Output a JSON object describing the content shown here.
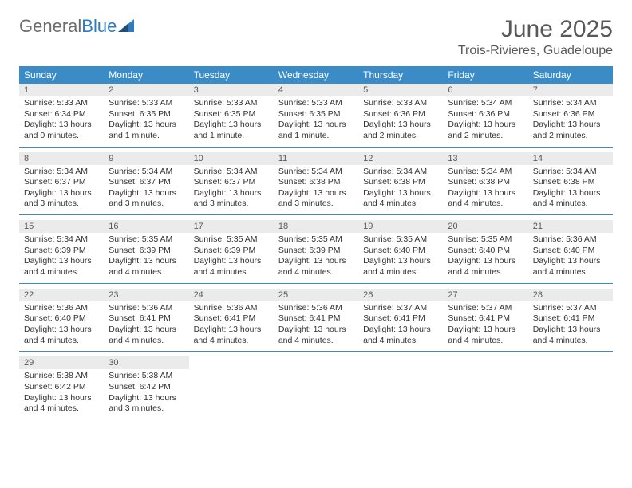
{
  "brand": {
    "word1": "General",
    "word2": "Blue"
  },
  "title": "June 2025",
  "location": "Trois-Rivieres, Guadeloupe",
  "colors": {
    "header_bg": "#3b8bc7",
    "header_text": "#ffffff",
    "daynum_bg": "#ebebeb",
    "text": "#333333",
    "title_text": "#585858",
    "logo_gray": "#6c6c6c",
    "logo_blue": "#2f7bbf",
    "divider": "#3b8bc7",
    "background": "#ffffff"
  },
  "day_names": [
    "Sunday",
    "Monday",
    "Tuesday",
    "Wednesday",
    "Thursday",
    "Friday",
    "Saturday"
  ],
  "weeks": [
    [
      {
        "n": "1",
        "sunrise": "Sunrise: 5:33 AM",
        "sunset": "Sunset: 6:34 PM",
        "d1": "Daylight: 13 hours",
        "d2": "and 0 minutes."
      },
      {
        "n": "2",
        "sunrise": "Sunrise: 5:33 AM",
        "sunset": "Sunset: 6:35 PM",
        "d1": "Daylight: 13 hours",
        "d2": "and 1 minute."
      },
      {
        "n": "3",
        "sunrise": "Sunrise: 5:33 AM",
        "sunset": "Sunset: 6:35 PM",
        "d1": "Daylight: 13 hours",
        "d2": "and 1 minute."
      },
      {
        "n": "4",
        "sunrise": "Sunrise: 5:33 AM",
        "sunset": "Sunset: 6:35 PM",
        "d1": "Daylight: 13 hours",
        "d2": "and 1 minute."
      },
      {
        "n": "5",
        "sunrise": "Sunrise: 5:33 AM",
        "sunset": "Sunset: 6:36 PM",
        "d1": "Daylight: 13 hours",
        "d2": "and 2 minutes."
      },
      {
        "n": "6",
        "sunrise": "Sunrise: 5:34 AM",
        "sunset": "Sunset: 6:36 PM",
        "d1": "Daylight: 13 hours",
        "d2": "and 2 minutes."
      },
      {
        "n": "7",
        "sunrise": "Sunrise: 5:34 AM",
        "sunset": "Sunset: 6:36 PM",
        "d1": "Daylight: 13 hours",
        "d2": "and 2 minutes."
      }
    ],
    [
      {
        "n": "8",
        "sunrise": "Sunrise: 5:34 AM",
        "sunset": "Sunset: 6:37 PM",
        "d1": "Daylight: 13 hours",
        "d2": "and 3 minutes."
      },
      {
        "n": "9",
        "sunrise": "Sunrise: 5:34 AM",
        "sunset": "Sunset: 6:37 PM",
        "d1": "Daylight: 13 hours",
        "d2": "and 3 minutes."
      },
      {
        "n": "10",
        "sunrise": "Sunrise: 5:34 AM",
        "sunset": "Sunset: 6:37 PM",
        "d1": "Daylight: 13 hours",
        "d2": "and 3 minutes."
      },
      {
        "n": "11",
        "sunrise": "Sunrise: 5:34 AM",
        "sunset": "Sunset: 6:38 PM",
        "d1": "Daylight: 13 hours",
        "d2": "and 3 minutes."
      },
      {
        "n": "12",
        "sunrise": "Sunrise: 5:34 AM",
        "sunset": "Sunset: 6:38 PM",
        "d1": "Daylight: 13 hours",
        "d2": "and 4 minutes."
      },
      {
        "n": "13",
        "sunrise": "Sunrise: 5:34 AM",
        "sunset": "Sunset: 6:38 PM",
        "d1": "Daylight: 13 hours",
        "d2": "and 4 minutes."
      },
      {
        "n": "14",
        "sunrise": "Sunrise: 5:34 AM",
        "sunset": "Sunset: 6:38 PM",
        "d1": "Daylight: 13 hours",
        "d2": "and 4 minutes."
      }
    ],
    [
      {
        "n": "15",
        "sunrise": "Sunrise: 5:34 AM",
        "sunset": "Sunset: 6:39 PM",
        "d1": "Daylight: 13 hours",
        "d2": "and 4 minutes."
      },
      {
        "n": "16",
        "sunrise": "Sunrise: 5:35 AM",
        "sunset": "Sunset: 6:39 PM",
        "d1": "Daylight: 13 hours",
        "d2": "and 4 minutes."
      },
      {
        "n": "17",
        "sunrise": "Sunrise: 5:35 AM",
        "sunset": "Sunset: 6:39 PM",
        "d1": "Daylight: 13 hours",
        "d2": "and 4 minutes."
      },
      {
        "n": "18",
        "sunrise": "Sunrise: 5:35 AM",
        "sunset": "Sunset: 6:39 PM",
        "d1": "Daylight: 13 hours",
        "d2": "and 4 minutes."
      },
      {
        "n": "19",
        "sunrise": "Sunrise: 5:35 AM",
        "sunset": "Sunset: 6:40 PM",
        "d1": "Daylight: 13 hours",
        "d2": "and 4 minutes."
      },
      {
        "n": "20",
        "sunrise": "Sunrise: 5:35 AM",
        "sunset": "Sunset: 6:40 PM",
        "d1": "Daylight: 13 hours",
        "d2": "and 4 minutes."
      },
      {
        "n": "21",
        "sunrise": "Sunrise: 5:36 AM",
        "sunset": "Sunset: 6:40 PM",
        "d1": "Daylight: 13 hours",
        "d2": "and 4 minutes."
      }
    ],
    [
      {
        "n": "22",
        "sunrise": "Sunrise: 5:36 AM",
        "sunset": "Sunset: 6:40 PM",
        "d1": "Daylight: 13 hours",
        "d2": "and 4 minutes."
      },
      {
        "n": "23",
        "sunrise": "Sunrise: 5:36 AM",
        "sunset": "Sunset: 6:41 PM",
        "d1": "Daylight: 13 hours",
        "d2": "and 4 minutes."
      },
      {
        "n": "24",
        "sunrise": "Sunrise: 5:36 AM",
        "sunset": "Sunset: 6:41 PM",
        "d1": "Daylight: 13 hours",
        "d2": "and 4 minutes."
      },
      {
        "n": "25",
        "sunrise": "Sunrise: 5:36 AM",
        "sunset": "Sunset: 6:41 PM",
        "d1": "Daylight: 13 hours",
        "d2": "and 4 minutes."
      },
      {
        "n": "26",
        "sunrise": "Sunrise: 5:37 AM",
        "sunset": "Sunset: 6:41 PM",
        "d1": "Daylight: 13 hours",
        "d2": "and 4 minutes."
      },
      {
        "n": "27",
        "sunrise": "Sunrise: 5:37 AM",
        "sunset": "Sunset: 6:41 PM",
        "d1": "Daylight: 13 hours",
        "d2": "and 4 minutes."
      },
      {
        "n": "28",
        "sunrise": "Sunrise: 5:37 AM",
        "sunset": "Sunset: 6:41 PM",
        "d1": "Daylight: 13 hours",
        "d2": "and 4 minutes."
      }
    ],
    [
      {
        "n": "29",
        "sunrise": "Sunrise: 5:38 AM",
        "sunset": "Sunset: 6:42 PM",
        "d1": "Daylight: 13 hours",
        "d2": "and 4 minutes."
      },
      {
        "n": "30",
        "sunrise": "Sunrise: 5:38 AM",
        "sunset": "Sunset: 6:42 PM",
        "d1": "Daylight: 13 hours",
        "d2": "and 3 minutes."
      },
      null,
      null,
      null,
      null,
      null
    ]
  ]
}
